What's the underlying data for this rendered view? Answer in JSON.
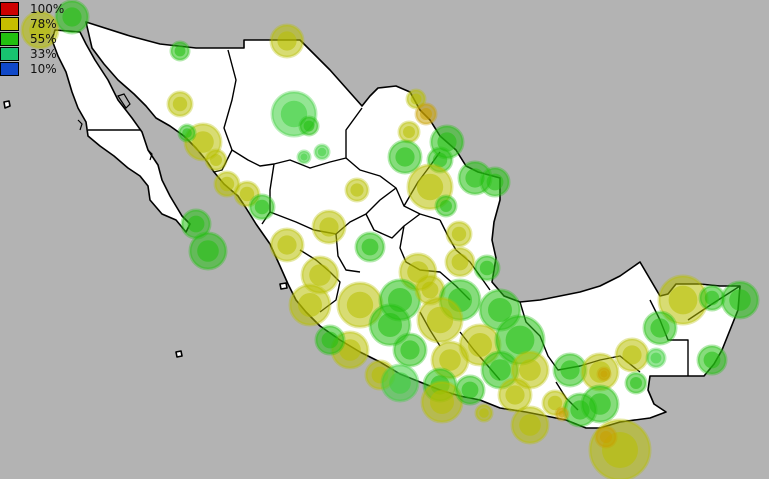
{
  "map": {
    "region": "Mexico",
    "background_color": "#b3b3b3",
    "land_color": "#ffffff",
    "border_color": "#000000",
    "marker_style": "semi-transparent filled circles"
  },
  "legend": {
    "entries": [
      {
        "label": "100%",
        "color": "#cc0000"
      },
      {
        "label": "78%",
        "color": "#c6be00"
      },
      {
        "label": "55%",
        "color": "#22c010"
      },
      {
        "label": "33%",
        "color": "#18c470"
      },
      {
        "label": "10%",
        "color": "#1048c8"
      }
    ]
  }
}
